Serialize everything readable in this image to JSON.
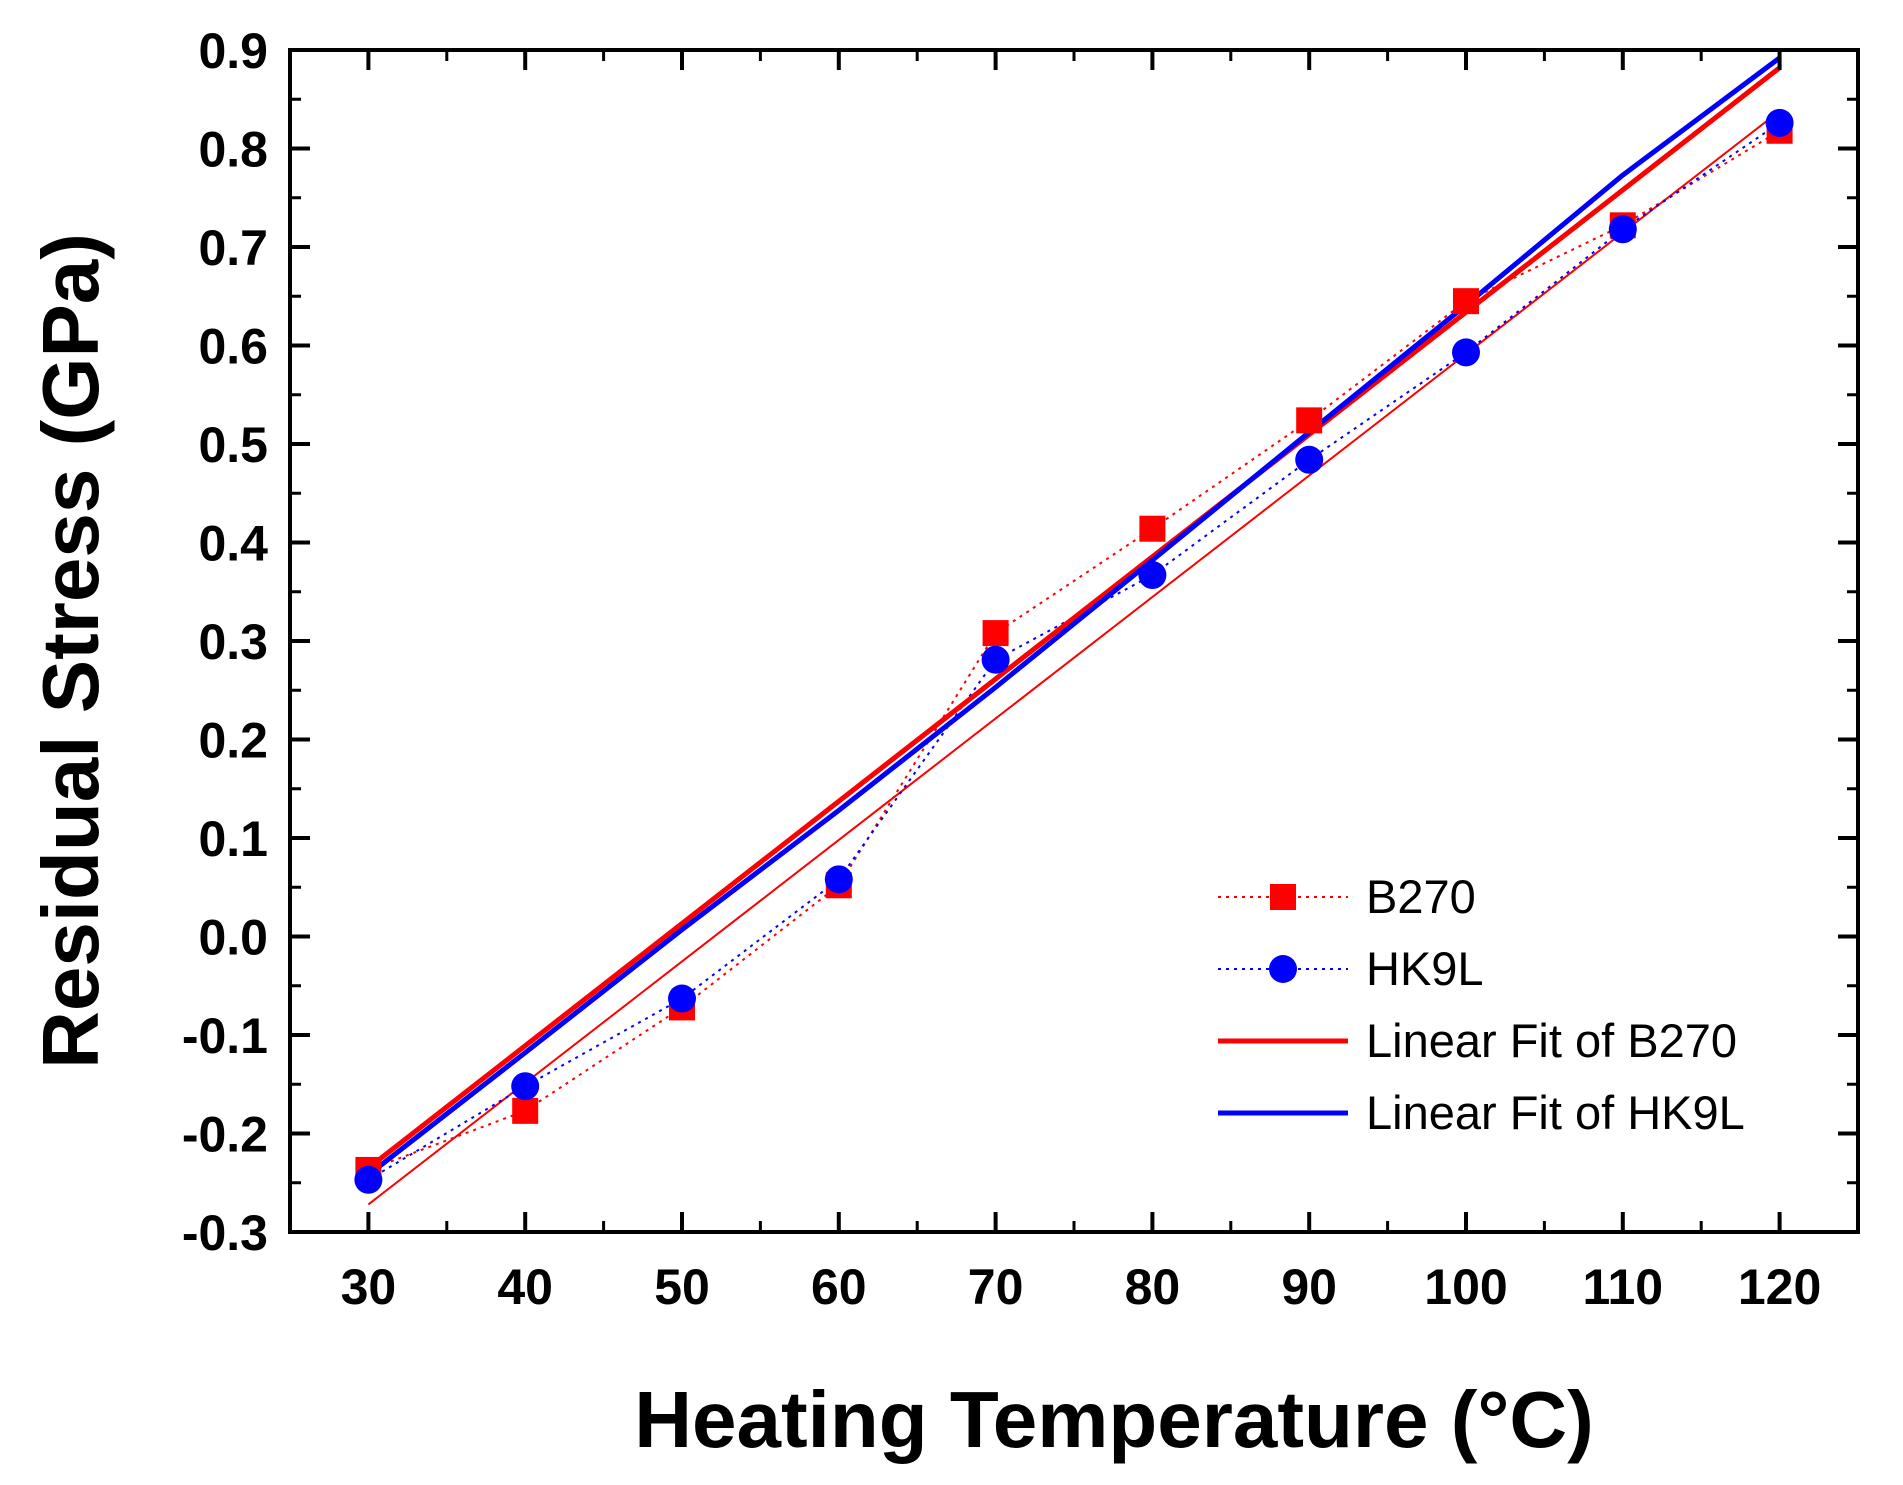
{
  "chart_data": {
    "type": "line",
    "title": "",
    "xlabel": "Heating Temperature (°C)",
    "ylabel": "Residual Stress (GPa)",
    "xlim": [
      25,
      125
    ],
    "ylim": [
      -0.3,
      0.9
    ],
    "x_ticks": [
      30,
      40,
      50,
      60,
      70,
      80,
      90,
      100,
      110,
      120
    ],
    "x_tick_labels": [
      "30",
      "40",
      "50",
      "60",
      "70",
      "80",
      "90",
      "100",
      "110",
      "120"
    ],
    "y_ticks": [
      -0.3,
      -0.2,
      -0.1,
      0.0,
      0.1,
      0.2,
      0.3,
      0.4,
      0.5,
      0.6,
      0.7,
      0.8,
      0.9
    ],
    "y_tick_labels": [
      "-0.3",
      "-0.2",
      "-0.1",
      "0.0",
      "0.1",
      "0.2",
      "0.3",
      "0.4",
      "0.5",
      "0.6",
      "0.7",
      "0.8",
      "0.9"
    ],
    "grid": false,
    "legend_position": "bottom-right",
    "x": [
      30,
      40,
      50,
      60,
      70,
      80,
      90,
      100,
      110,
      120
    ],
    "series": [
      {
        "name": "B270",
        "kind": "data",
        "marker": "square",
        "line": "dotted",
        "color": "#ff0000",
        "values": [
          -0.237,
          -0.177,
          -0.072,
          0.052,
          0.308,
          0.414,
          0.524,
          0.645,
          0.722,
          0.818
        ]
      },
      {
        "name": "HK9L",
        "kind": "data",
        "marker": "circle",
        "line": "dotted",
        "color": "#0000ff",
        "values": [
          -0.247,
          -0.152,
          -0.063,
          0.058,
          0.281,
          0.367,
          0.484,
          0.593,
          0.718,
          0.826
        ]
      },
      {
        "name": "Linear Fit of B270",
        "kind": "fit",
        "line": "solid",
        "color": "#ff0000",
        "x": [
          30,
          120
        ],
        "values": [
          -0.235,
          0.882
        ]
      },
      {
        "name": "Linear Fit of HK9L",
        "kind": "fit",
        "line": "solid",
        "color": "#0000ff",
        "x": [
          30,
          40,
          50,
          60,
          70,
          80,
          90,
          100,
          110,
          120
        ],
        "values": [
          -0.242,
          -0.118,
          0.007,
          0.128,
          0.253,
          0.382,
          0.512,
          0.641,
          0.773,
          0.892
        ]
      },
      {
        "name": "",
        "kind": "fit-secondary",
        "line": "solid-thin",
        "color": "#ff0000",
        "x": [
          30,
          120
        ],
        "values": [
          -0.272,
          0.838
        ]
      }
    ]
  }
}
